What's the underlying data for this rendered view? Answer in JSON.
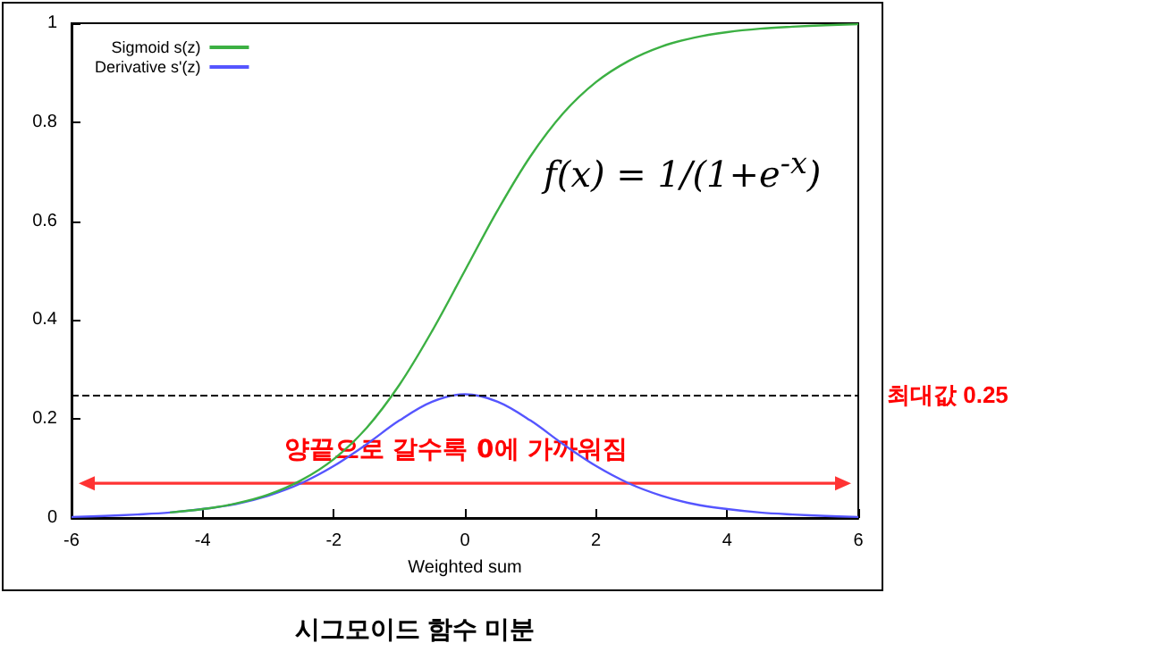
{
  "chart_data": {
    "type": "line",
    "title": "시그모이드 함수 미분",
    "xlabel": "Weighted sum",
    "x": [
      -6,
      -5.5,
      -5,
      -4.5,
      -4,
      -3.5,
      -3,
      -2.5,
      -2,
      -1.5,
      -1,
      -0.5,
      0,
      0.5,
      1,
      1.5,
      2,
      2.5,
      3,
      3.5,
      4,
      4.5,
      5,
      5.5,
      6
    ],
    "series": [
      {
        "name": "Sigmoid s(z)",
        "color": "#3cb043",
        "values": [
          null,
          null,
          null,
          0.011,
          0.018,
          0.029,
          0.047,
          0.076,
          0.119,
          0.182,
          0.269,
          0.378,
          0.5,
          0.622,
          0.731,
          0.818,
          0.881,
          0.924,
          0.953,
          0.971,
          0.982,
          0.989,
          0.993,
          0.996,
          0.998
        ]
      },
      {
        "name": "Derivative s'(z)",
        "color": "#5555ff",
        "values": [
          0.002,
          0.004,
          0.007,
          0.011,
          0.018,
          0.028,
          0.045,
          0.07,
          0.105,
          0.149,
          0.197,
          0.235,
          0.25,
          0.235,
          0.197,
          0.149,
          0.105,
          0.07,
          0.045,
          0.028,
          0.018,
          0.011,
          0.007,
          0.004,
          0.002
        ]
      }
    ],
    "xlim": [
      -6,
      6
    ],
    "xticks": [
      -6,
      -4,
      -2,
      0,
      2,
      4,
      6
    ],
    "ylim": [
      0,
      1
    ],
    "yticks": [
      0,
      0.2,
      0.4,
      0.6,
      0.8,
      1
    ],
    "ref_lines": [
      {
        "axis": "y",
        "value": 0.25,
        "label": "최대값 0.25",
        "color": "#000000",
        "line_style": "dashed"
      }
    ],
    "annotations": [
      "f(x) = 1/(1+e$^{-x}$)",
      "양끝으로 갈수록 0에 가까워짐"
    ],
    "legend": "top left",
    "grid": false,
    "marker": "none",
    "line_style": "solid"
  }
}
